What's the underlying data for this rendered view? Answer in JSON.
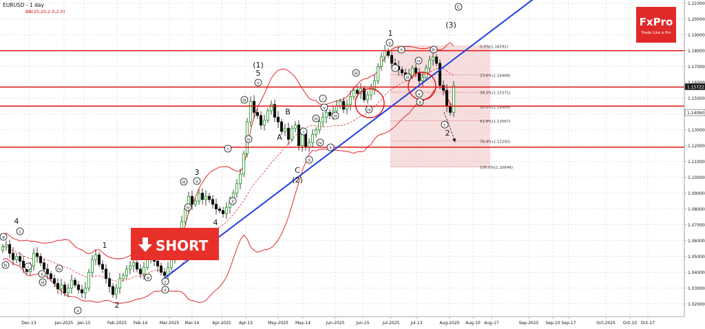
{
  "header": {
    "symbol_line": "EURUSD - 1 day",
    "indicator_line": "BB(20,20,2.0,2.0)"
  },
  "brand": {
    "name": "FxPro",
    "tagline": "Trade Like a Pro",
    "color": "#e02a2a"
  },
  "short_label": "SHORT",
  "colors": {
    "trendline": "#1a3fe0",
    "hline": "#e01010",
    "band": "#e01010",
    "fib_zone": "#f6d8d8",
    "up": "#2a9d2a",
    "down": "#111111"
  },
  "chart_data": {
    "type": "candlestick",
    "symbol": "EURUSD",
    "timeframe": "1 day",
    "ylim": [
      1.012,
      1.212
    ],
    "yticks": [
      "1.21000",
      "1.20000",
      "1.19000",
      "1.18000",
      "1.17000",
      "1.16000",
      "1.15000",
      "1.14000",
      "1.13000",
      "1.12000",
      "1.11000",
      "1.10000",
      "1.09000",
      "1.08000",
      "1.07000",
      "1.06000",
      "1.05000",
      "1.04000",
      "1.03000",
      "1.02000"
    ],
    "xticks": [
      "Dec-13",
      "Jan-2025",
      "Jan-15",
      "Feb-2025",
      "Feb-14",
      "Mar-2025",
      "Mar-14",
      "Apr-2025",
      "Apr-13",
      "May-2025",
      "May-14",
      "Jun-2025",
      "Jun-15",
      "Jul-2025",
      "Jul-13",
      "Aug-2025",
      "Aug-10",
      "Aug-17",
      "Sep-2025",
      "Sep-10",
      "Sep-17",
      "Oct-2025",
      "Oct-10",
      "Oct-17"
    ],
    "price_tags": [
      {
        "label": "1.15722",
        "value": 1.15722,
        "highlight": true
      },
      {
        "label": "1.14090",
        "value": 1.1409,
        "highlight": false
      }
    ],
    "horizontal_levels": [
      1.18,
      1.157,
      1.145,
      1.119
    ],
    "trendline": {
      "from": [
        "Mar-2025",
        1.036
      ],
      "to": [
        "Aug-2025",
        1.215
      ]
    },
    "fib_levels": [
      {
        "label": "0.0%(1.18292)",
        "value": 1.18292
      },
      {
        "label": "23.6%(1.16468)",
        "value": 1.16468
      },
      {
        "label": "38.2%(1.15371)",
        "value": 1.15371
      },
      {
        "label": "50.0%(1.14469)",
        "value": 1.14469
      },
      {
        "label": "61.8%(1.13567)",
        "value": 1.13567
      },
      {
        "label": "76.4%(1.12292)",
        "value": 1.12292
      },
      {
        "label": "100.0%(1.10646)",
        "value": 1.10646
      }
    ],
    "closes": [
      1.056,
      1.0575,
      1.052,
      1.048,
      1.05,
      1.047,
      1.043,
      1.0405,
      1.044,
      1.052,
      1.05,
      1.046,
      1.042,
      1.039,
      1.036,
      1.033,
      1.0295,
      1.032,
      1.027,
      1.03,
      1.035,
      1.032,
      1.029,
      1.027,
      1.03,
      1.04,
      1.048,
      1.051,
      1.045,
      1.042,
      1.036,
      1.031,
      1.026,
      1.03,
      1.036,
      1.038,
      1.042,
      1.044,
      1.046,
      1.042,
      1.039,
      1.043,
      1.048,
      1.05,
      1.047,
      1.044,
      1.04,
      1.038,
      1.043,
      1.048,
      1.052,
      1.06,
      1.072,
      1.08,
      1.088,
      1.083,
      1.085,
      1.09,
      1.086,
      1.088,
      1.086,
      1.083,
      1.08,
      1.079,
      1.077,
      1.081,
      1.084,
      1.09,
      1.096,
      1.102,
      1.115,
      1.135,
      1.148,
      1.141,
      1.139,
      1.133,
      1.136,
      1.142,
      1.146,
      1.138,
      1.135,
      1.129,
      1.131,
      1.124,
      1.131,
      1.133,
      1.12,
      1.128,
      1.119,
      1.122,
      1.127,
      1.13,
      1.135,
      1.138,
      1.141,
      1.139,
      1.142,
      1.145,
      1.148,
      1.143,
      1.146,
      1.151,
      1.155,
      1.153,
      1.156,
      1.149,
      1.152,
      1.156,
      1.161,
      1.17,
      1.176,
      1.18,
      1.177,
      1.172,
      1.17,
      1.168,
      1.166,
      1.165,
      1.164,
      1.169,
      1.166,
      1.161,
      1.163,
      1.169,
      1.174,
      1.176,
      1.172,
      1.158,
      1.155,
      1.145,
      1.141,
      1.158
    ]
  },
  "wave_labels": [
    {
      "text": "4",
      "x": 24,
      "y": 325,
      "style": "big"
    },
    {
      "text": "1",
      "x": 152,
      "y": 360,
      "style": "big"
    },
    {
      "text": "2",
      "x": 170,
      "y": 447,
      "style": "big"
    },
    {
      "text": "3",
      "x": 286,
      "y": 254,
      "style": "big"
    },
    {
      "text": "4",
      "x": 313,
      "y": 327,
      "style": "big"
    },
    {
      "text": "(1)",
      "x": 375,
      "y": 98,
      "style": "big"
    },
    {
      "text": "5",
      "x": 375,
      "y": 110,
      "style": "big"
    },
    {
      "text": "A",
      "x": 406,
      "y": 203,
      "style": "big"
    },
    {
      "text": "B",
      "x": 418,
      "y": 166,
      "style": "big"
    },
    {
      "text": "C",
      "x": 432,
      "y": 251,
      "style": "big"
    },
    {
      "text": "(2)",
      "x": 432,
      "y": 265,
      "style": "big"
    },
    {
      "text": "1",
      "x": 567,
      "y": 52,
      "style": "big"
    },
    {
      "text": "(3)",
      "x": 655,
      "y": 40,
      "style": "big"
    },
    {
      "text": "2",
      "x": 650,
      "y": 197,
      "style": "big"
    },
    {
      "text": "c",
      "x": 29,
      "y": 336,
      "style": "circ"
    },
    {
      "text": "a",
      "x": 5,
      "y": 344,
      "style": "circ"
    },
    {
      "text": "b",
      "x": 8,
      "y": 385,
      "style": "circ"
    },
    {
      "text": "i",
      "x": 41,
      "y": 387,
      "style": "circ"
    },
    {
      "text": "ii",
      "x": 61,
      "y": 398,
      "style": "circ"
    },
    {
      "text": "iii",
      "x": 62,
      "y": 410,
      "style": "circ"
    },
    {
      "text": "iv",
      "x": 86,
      "y": 390,
      "style": "circ"
    },
    {
      "text": "v",
      "x": 113,
      "y": 451,
      "style": "circ"
    },
    {
      "text": "a",
      "x": 215,
      "y": 403,
      "style": "circ"
    },
    {
      "text": "c",
      "x": 240,
      "y": 409,
      "style": "circ"
    },
    {
      "text": "ii",
      "x": 240,
      "y": 421,
      "style": "circ"
    },
    {
      "text": "iii",
      "x": 267,
      "y": 264,
      "style": "circ"
    },
    {
      "text": "v",
      "x": 286,
      "y": 263,
      "style": "circ"
    },
    {
      "text": "iv",
      "x": 273,
      "y": 301,
      "style": "circ"
    },
    {
      "text": "ii",
      "x": 338,
      "y": 292,
      "style": "circ"
    },
    {
      "text": "i",
      "x": 331,
      "y": 216,
      "style": "circ"
    },
    {
      "text": "iii",
      "x": 355,
      "y": 145,
      "style": "circ"
    },
    {
      "text": "v",
      "x": 375,
      "y": 120,
      "style": "circ"
    },
    {
      "text": "iv",
      "x": 361,
      "y": 202,
      "style": "circ"
    },
    {
      "text": "i",
      "x": 441,
      "y": 191,
      "style": "circ"
    },
    {
      "text": "ii",
      "x": 449,
      "y": 232,
      "style": "circ"
    },
    {
      "text": "iii",
      "x": 459,
      "y": 172,
      "style": "circ"
    },
    {
      "text": "iv",
      "x": 465,
      "y": 207,
      "style": "circ"
    },
    {
      "text": "i",
      "x": 469,
      "y": 143,
      "style": "circ"
    },
    {
      "text": "v",
      "x": 471,
      "y": 156,
      "style": "circ"
    },
    {
      "text": "iii",
      "x": 487,
      "y": 168,
      "style": "circ"
    },
    {
      "text": "ii",
      "x": 480,
      "y": 214,
      "style": "circ"
    },
    {
      "text": "iii",
      "x": 517,
      "y": 106,
      "style": "circ"
    },
    {
      "text": "iv",
      "x": 536,
      "y": 159,
      "style": "circ"
    },
    {
      "text": "v",
      "x": 566,
      "y": 62,
      "style": "circ"
    },
    {
      "text": "i",
      "x": 574,
      "y": 99,
      "style": "circ"
    },
    {
      "text": "ii",
      "x": 583,
      "y": 72,
      "style": "circ"
    },
    {
      "text": "iii",
      "x": 592,
      "y": 112,
      "style": "circ"
    },
    {
      "text": "iv",
      "x": 608,
      "y": 88,
      "style": "circ"
    },
    {
      "text": "v",
      "x": 609,
      "y": 136,
      "style": "circ"
    },
    {
      "text": "b",
      "x": 630,
      "y": 72,
      "style": "circ"
    },
    {
      "text": "a",
      "x": 610,
      "y": 148,
      "style": "circ"
    },
    {
      "text": "c",
      "x": 646,
      "y": 181,
      "style": "circ"
    },
    {
      "text": "C",
      "x": 666,
      "y": 10,
      "style": "circ"
    }
  ],
  "highlight_circles": [
    {
      "name": "circle-iv-jun",
      "cx": 537,
      "cy": 150,
      "r": 21
    },
    {
      "name": "circle-v-jul",
      "cx": 613,
      "cy": 125,
      "r": 20
    }
  ]
}
